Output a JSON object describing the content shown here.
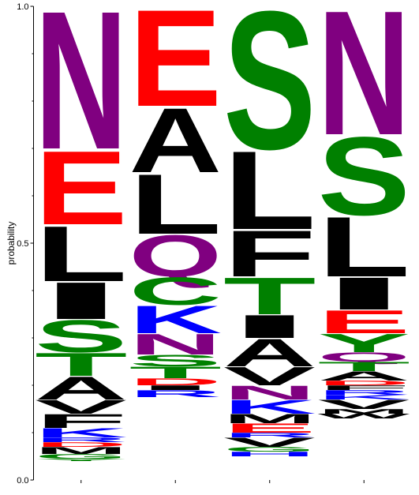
{
  "chart_data": {
    "type": "sequence-logo",
    "ylabel": "probability",
    "ylim": [
      0,
      1
    ],
    "yticks": [
      {
        "value": 0.0,
        "label": "0.0"
      },
      {
        "value": 0.5,
        "label": "0.5"
      },
      {
        "value": 1.0,
        "label": "1.0"
      }
    ],
    "colors": {
      "N": "#800080",
      "Q": "#800080",
      "E": "#ff0000",
      "D": "#ff0000",
      "S": "#008000",
      "T": "#008000",
      "C": "#008000",
      "Y": "#008000",
      "G": "#008000",
      "K": "#0000ff",
      "R": "#0000ff",
      "H": "#0000ff",
      "A": "#000000",
      "L": "#000000",
      "I": "#000000",
      "F": "#000000",
      "V": "#000000",
      "M": "#000000",
      "W": "#000000",
      "P": "#000000"
    },
    "positions": [
      [
        {
          "letter": "N",
          "p": 0.3
        },
        {
          "letter": "E",
          "p": 0.16
        },
        {
          "letter": "L",
          "p": 0.12
        },
        {
          "letter": "I",
          "p": 0.08
        },
        {
          "letter": "S",
          "p": 0.07
        },
        {
          "letter": "T",
          "p": 0.05
        },
        {
          "letter": "A",
          "p": 0.05
        },
        {
          "letter": "V",
          "p": 0.03
        },
        {
          "letter": "F",
          "p": 0.03
        },
        {
          "letter": "K",
          "p": 0.02
        },
        {
          "letter": "R",
          "p": 0.01
        },
        {
          "letter": "D",
          "p": 0.01
        },
        {
          "letter": "M",
          "p": 0.015
        },
        {
          "letter": "G",
          "p": 0.01
        },
        {
          "letter": "Y",
          "p": 0.005
        }
      ],
      [
        {
          "letter": "E",
          "p": 0.21
        },
        {
          "letter": "A",
          "p": 0.14
        },
        {
          "letter": "L",
          "p": 0.13
        },
        {
          "letter": "Q",
          "p": 0.09
        },
        {
          "letter": "C",
          "p": 0.06
        },
        {
          "letter": "K",
          "p": 0.06
        },
        {
          "letter": "N",
          "p": 0.045
        },
        {
          "letter": "S",
          "p": 0.025
        },
        {
          "letter": "T",
          "p": 0.025
        },
        {
          "letter": "D",
          "p": 0.015
        },
        {
          "letter": "I",
          "p": 0.01
        },
        {
          "letter": "R",
          "p": 0.015
        }
      ],
      [
        {
          "letter": "S",
          "p": 0.3
        },
        {
          "letter": "L",
          "p": 0.17
        },
        {
          "letter": "F",
          "p": 0.1
        },
        {
          "letter": "T",
          "p": 0.08
        },
        {
          "letter": "I",
          "p": 0.05
        },
        {
          "letter": "A",
          "p": 0.06
        },
        {
          "letter": "V",
          "p": 0.04
        },
        {
          "letter": "N",
          "p": 0.03
        },
        {
          "letter": "K",
          "p": 0.03
        },
        {
          "letter": "M",
          "p": 0.02
        },
        {
          "letter": "E",
          "p": 0.02
        },
        {
          "letter": "R",
          "p": 0.01
        },
        {
          "letter": "V",
          "p": 0.02
        },
        {
          "letter": "G",
          "p": 0.01
        },
        {
          "letter": "H",
          "p": 0.01
        }
      ],
      [
        {
          "letter": "N",
          "p": 0.27
        },
        {
          "letter": "S",
          "p": 0.17
        },
        {
          "letter": "L",
          "p": 0.13
        },
        {
          "letter": "I",
          "p": 0.07
        },
        {
          "letter": "E",
          "p": 0.05
        },
        {
          "letter": "Y",
          "p": 0.04
        },
        {
          "letter": "Q",
          "p": 0.02
        },
        {
          "letter": "T",
          "p": 0.02
        },
        {
          "letter": "A",
          "p": 0.02
        },
        {
          "letter": "D",
          "p": 0.01
        },
        {
          "letter": "F",
          "p": 0.01
        },
        {
          "letter": "R",
          "p": 0.01
        },
        {
          "letter": "K",
          "p": 0.01
        },
        {
          "letter": "V",
          "p": 0.02
        },
        {
          "letter": "M",
          "p": 0.01
        },
        {
          "letter": "W",
          "p": 0.01
        }
      ]
    ]
  }
}
